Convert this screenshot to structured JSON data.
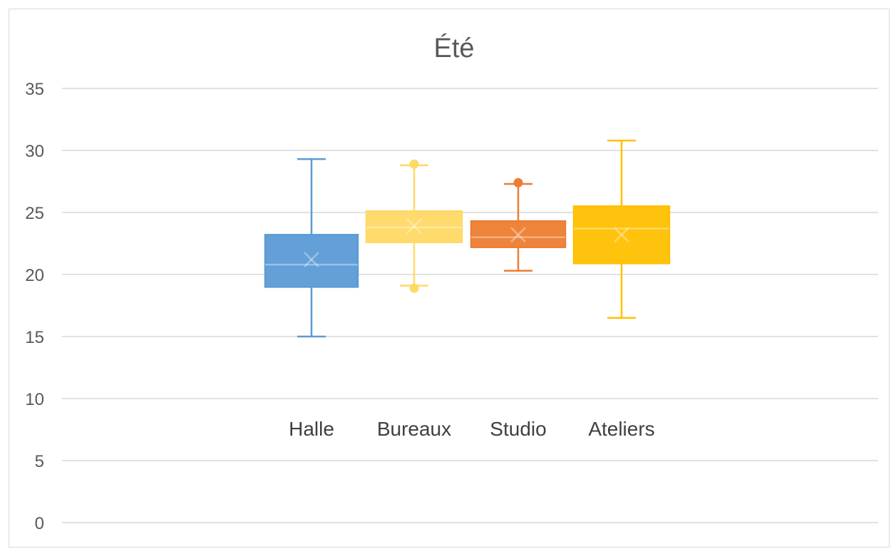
{
  "chart_data": {
    "type": "boxplot",
    "title": "Été",
    "xlabel": "",
    "ylabel": "",
    "ylim": [
      0,
      35
    ],
    "yticks": [
      0,
      5,
      10,
      15,
      20,
      25,
      30,
      35
    ],
    "grid": true,
    "legend": "none",
    "categories": [
      "Halle",
      "Bureaux",
      "Studio",
      "Ateliers"
    ],
    "series": [
      {
        "category": "Halle",
        "color": "#5b9bd5",
        "min": 15.0,
        "q1": 19.0,
        "median": 20.8,
        "mean": 21.2,
        "q3": 23.2,
        "max": 29.3,
        "outliers": []
      },
      {
        "category": "Bureaux",
        "color": "#ffd966",
        "min": 19.1,
        "q1": 22.6,
        "median": 23.8,
        "mean": 23.9,
        "q3": 25.1,
        "max": 28.8,
        "outliers": [
          18.9,
          28.9
        ]
      },
      {
        "category": "Studio",
        "color": "#ed7d31",
        "min": 20.3,
        "q1": 22.2,
        "median": 23.0,
        "mean": 23.2,
        "q3": 24.3,
        "max": 27.3,
        "outliers": [
          27.4
        ]
      },
      {
        "category": "Ateliers",
        "color": "#ffc000",
        "min": 16.5,
        "q1": 20.9,
        "median": 23.7,
        "mean": 23.2,
        "q3": 25.5,
        "max": 30.8,
        "outliers": []
      }
    ]
  }
}
